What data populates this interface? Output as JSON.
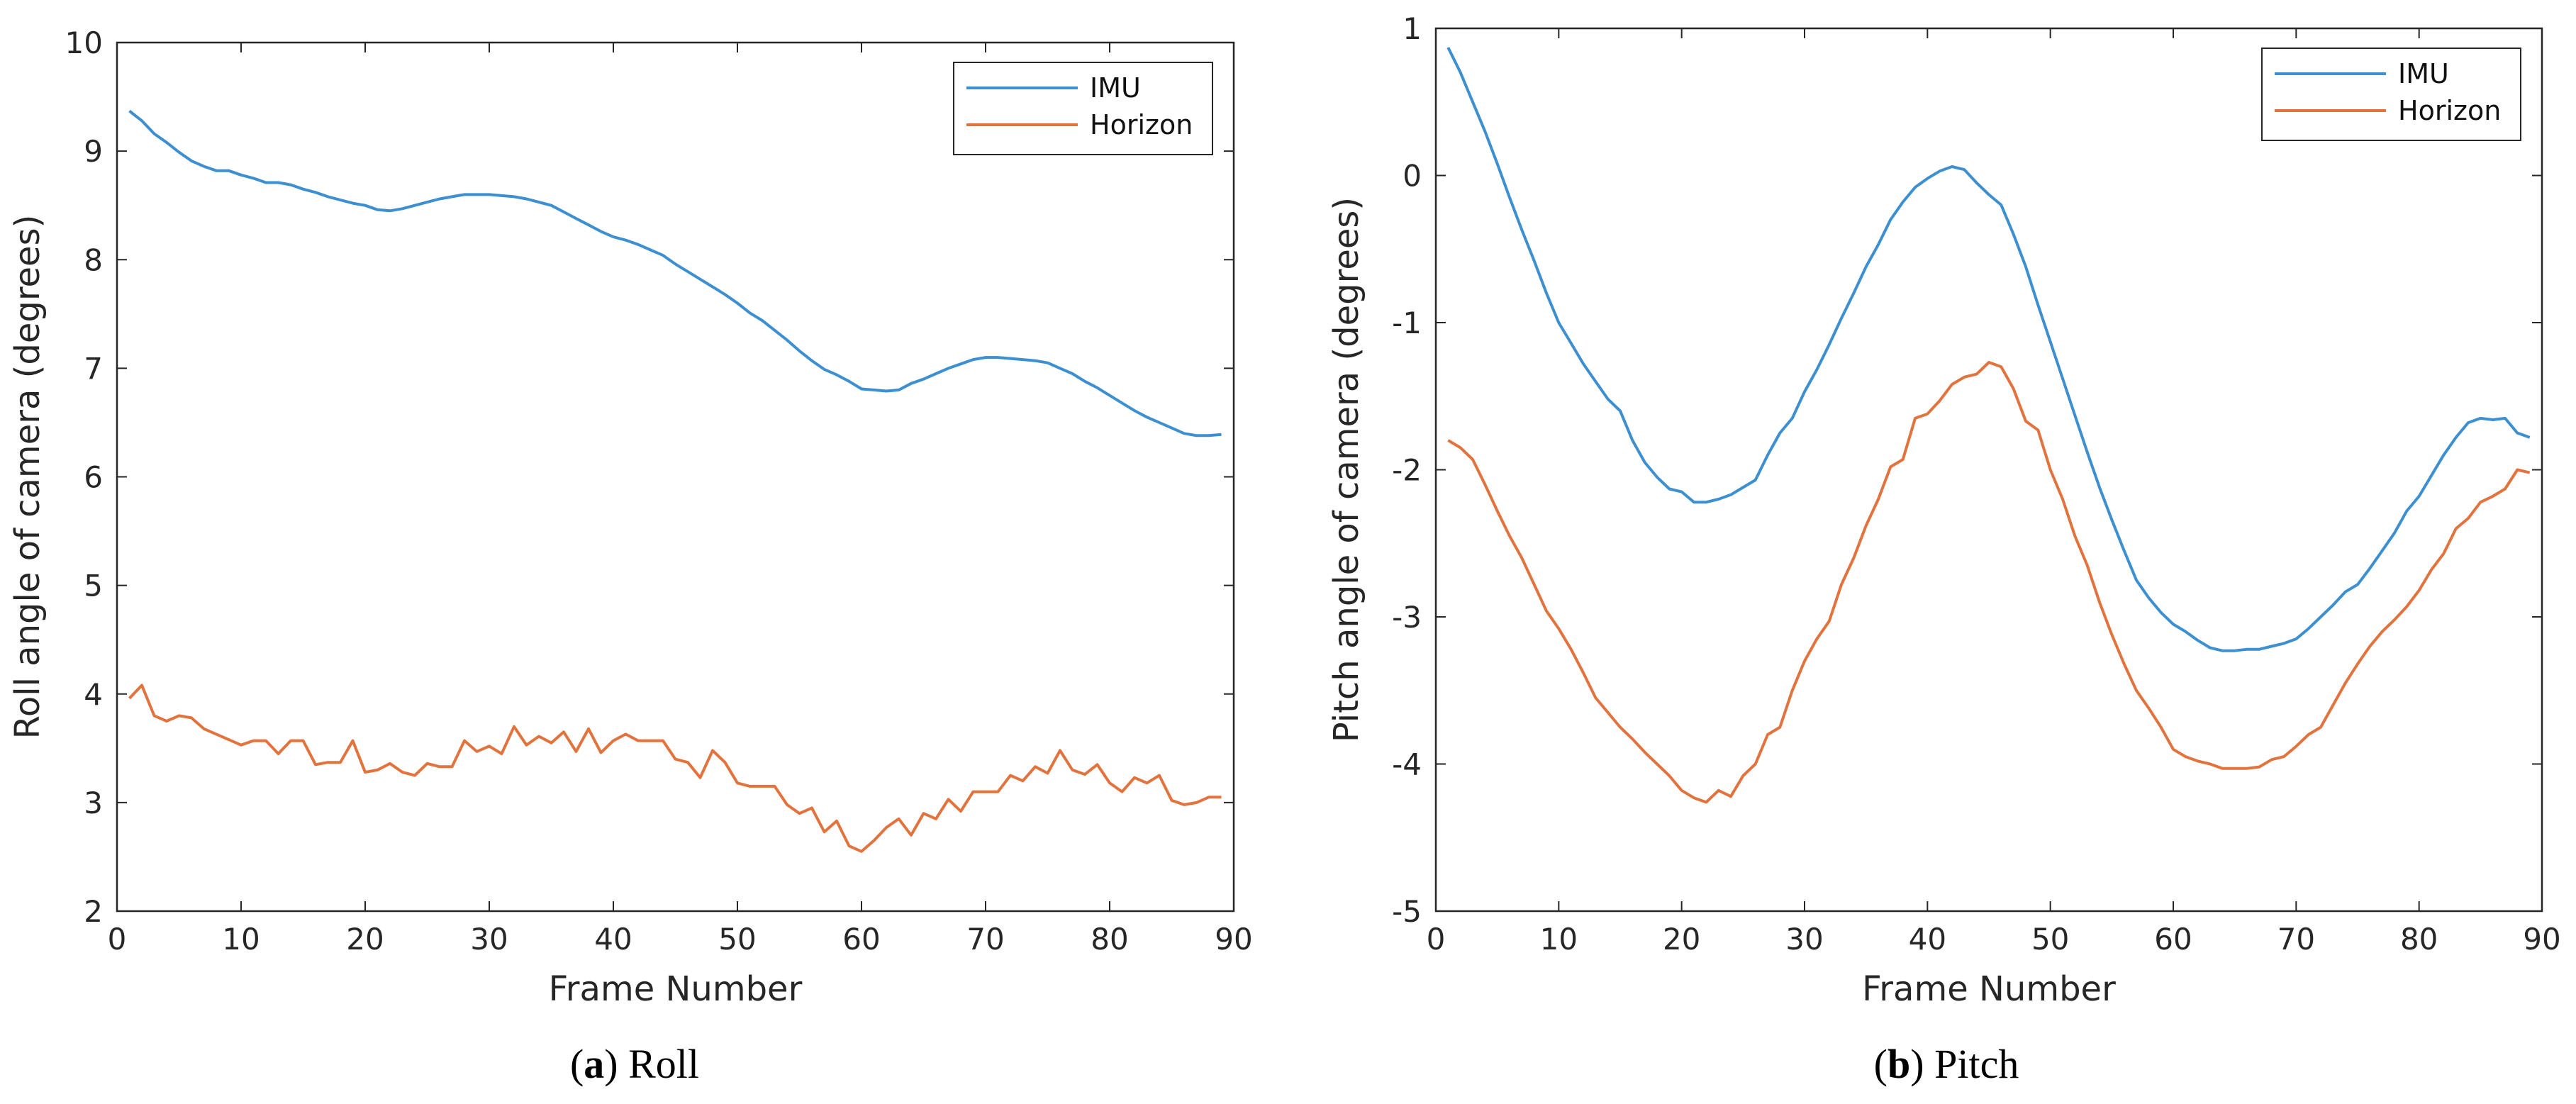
{
  "chart_data": [
    {
      "type": "line",
      "panel": "a",
      "caption_letter": "a",
      "caption_text": "Roll",
      "xlabel": "Frame Number",
      "ylabel": "Roll angle of camera (degrees)",
      "xlim": [
        0,
        90
      ],
      "ylim": [
        2,
        10
      ],
      "xticks": [
        "0",
        "10",
        "20",
        "30",
        "40",
        "50",
        "60",
        "70",
        "80",
        "90"
      ],
      "yticks": [
        "2",
        "3",
        "4",
        "5",
        "6",
        "7",
        "8",
        "9",
        "10"
      ],
      "legend_position": "top-right",
      "series": [
        {
          "name": "IMU",
          "color": "#3c8fd0",
          "x": [
            1,
            2,
            3,
            4,
            5,
            6,
            7,
            8,
            9,
            10,
            11,
            12,
            13,
            14,
            15,
            16,
            17,
            18,
            19,
            20,
            21,
            22,
            23,
            24,
            25,
            26,
            27,
            28,
            29,
            30,
            31,
            32,
            33,
            34,
            35,
            36,
            37,
            38,
            39,
            40,
            41,
            42,
            43,
            44,
            45,
            46,
            47,
            48,
            49,
            50,
            51,
            52,
            53,
            54,
            55,
            56,
            57,
            58,
            59,
            60,
            61,
            62,
            63,
            64,
            65,
            66,
            67,
            68,
            69,
            70,
            71,
            72,
            73,
            74,
            75,
            76,
            77,
            78,
            79,
            80,
            81,
            82,
            83,
            84,
            85,
            86,
            87,
            88,
            89
          ],
          "values": [
            9.37,
            9.28,
            9.16,
            9.08,
            8.99,
            8.91,
            8.86,
            8.82,
            8.82,
            8.78,
            8.75,
            8.71,
            8.71,
            8.69,
            8.65,
            8.62,
            8.58,
            8.55,
            8.52,
            8.5,
            8.46,
            8.45,
            8.47,
            8.5,
            8.53,
            8.56,
            8.58,
            8.6,
            8.6,
            8.6,
            8.59,
            8.58,
            8.56,
            8.53,
            8.5,
            8.44,
            8.38,
            8.32,
            8.26,
            8.21,
            8.18,
            8.14,
            8.09,
            8.04,
            7.96,
            7.89,
            7.82,
            7.75,
            7.68,
            7.6,
            7.51,
            7.44,
            7.35,
            7.26,
            7.16,
            7.07,
            6.99,
            6.94,
            6.88,
            6.81,
            6.8,
            6.79,
            6.8,
            6.86,
            6.9,
            6.95,
            7.0,
            7.04,
            7.08,
            7.1,
            7.1,
            7.09,
            7.08,
            7.07,
            7.05,
            7.0,
            6.95,
            6.88,
            6.82,
            6.75,
            6.68,
            6.61,
            6.55,
            6.5,
            6.45,
            6.4,
            6.38,
            6.38,
            6.39
          ]
        },
        {
          "name": "Horizon",
          "color": "#e2733d",
          "x": [
            1,
            2,
            3,
            4,
            5,
            6,
            7,
            8,
            9,
            10,
            11,
            12,
            13,
            14,
            15,
            16,
            17,
            18,
            19,
            20,
            21,
            22,
            23,
            24,
            25,
            26,
            27,
            28,
            29,
            30,
            31,
            32,
            33,
            34,
            35,
            36,
            37,
            38,
            39,
            40,
            41,
            42,
            43,
            44,
            45,
            46,
            47,
            48,
            49,
            50,
            51,
            52,
            53,
            54,
            55,
            56,
            57,
            58,
            59,
            60,
            61,
            62,
            63,
            64,
            65,
            66,
            67,
            68,
            69,
            70,
            71,
            72,
            73,
            74,
            75,
            76,
            77,
            78,
            79,
            80,
            81,
            82,
            83,
            84,
            85,
            86,
            87,
            88,
            89
          ],
          "values": [
            3.96,
            4.08,
            3.8,
            3.75,
            3.8,
            3.78,
            3.68,
            3.63,
            3.58,
            3.53,
            3.57,
            3.57,
            3.45,
            3.57,
            3.57,
            3.35,
            3.37,
            3.37,
            3.57,
            3.28,
            3.3,
            3.36,
            3.28,
            3.25,
            3.36,
            3.33,
            3.33,
            3.57,
            3.47,
            3.52,
            3.45,
            3.7,
            3.53,
            3.61,
            3.55,
            3.65,
            3.47,
            3.68,
            3.46,
            3.57,
            3.63,
            3.57,
            3.57,
            3.57,
            3.4,
            3.37,
            3.23,
            3.48,
            3.37,
            3.18,
            3.15,
            3.15,
            3.15,
            2.98,
            2.9,
            2.95,
            2.73,
            2.83,
            2.6,
            2.55,
            2.65,
            2.77,
            2.85,
            2.7,
            2.9,
            2.85,
            3.03,
            2.92,
            3.1,
            3.1,
            3.1,
            3.25,
            3.2,
            3.33,
            3.27,
            3.48,
            3.3,
            3.26,
            3.35,
            3.18,
            3.1,
            3.23,
            3.18,
            3.25,
            3.02,
            2.98,
            3.0,
            3.05,
            3.05
          ]
        }
      ]
    },
    {
      "type": "line",
      "panel": "b",
      "caption_letter": "b",
      "caption_text": "Pitch",
      "xlabel": "Frame Number",
      "ylabel": "Pitch angle of camera (degrees)",
      "xlim": [
        0,
        90
      ],
      "ylim": [
        -5,
        1
      ],
      "xticks": [
        "0",
        "10",
        "20",
        "30",
        "40",
        "50",
        "60",
        "70",
        "80",
        "90"
      ],
      "yticks": [
        "-5",
        "-4",
        "-3",
        "-2",
        "-1",
        "0",
        "1"
      ],
      "legend_position": "top-right",
      "series": [
        {
          "name": "IMU",
          "color": "#3c8fd0",
          "x": [
            1,
            2,
            3,
            4,
            5,
            6,
            7,
            8,
            9,
            10,
            11,
            12,
            13,
            14,
            15,
            16,
            17,
            18,
            19,
            20,
            21,
            22,
            23,
            24,
            25,
            26,
            27,
            28,
            29,
            30,
            31,
            32,
            33,
            34,
            35,
            36,
            37,
            38,
            39,
            40,
            41,
            42,
            43,
            44,
            45,
            46,
            47,
            48,
            49,
            50,
            51,
            52,
            53,
            54,
            55,
            56,
            57,
            58,
            59,
            60,
            61,
            62,
            63,
            64,
            65,
            66,
            67,
            68,
            69,
            70,
            71,
            72,
            73,
            74,
            75,
            76,
            77,
            78,
            79,
            80,
            81,
            82,
            83,
            84,
            85,
            86,
            87,
            88,
            89
          ],
          "values": [
            0.87,
            0.7,
            0.5,
            0.3,
            0.08,
            -0.15,
            -0.37,
            -0.58,
            -0.8,
            -1.0,
            -1.14,
            -1.28,
            -1.4,
            -1.52,
            -1.6,
            -1.8,
            -1.95,
            -2.05,
            -2.13,
            -2.15,
            -2.22,
            -2.22,
            -2.2,
            -2.17,
            -2.12,
            -2.07,
            -1.9,
            -1.75,
            -1.65,
            -1.47,
            -1.32,
            -1.15,
            -0.97,
            -0.8,
            -0.62,
            -0.47,
            -0.3,
            -0.18,
            -0.08,
            -0.02,
            0.03,
            0.06,
            0.04,
            -0.05,
            -0.13,
            -0.2,
            -0.4,
            -0.62,
            -0.88,
            -1.13,
            -1.38,
            -1.63,
            -1.88,
            -2.12,
            -2.34,
            -2.55,
            -2.75,
            -2.87,
            -2.97,
            -3.05,
            -3.1,
            -3.16,
            -3.21,
            -3.23,
            -3.23,
            -3.22,
            -3.22,
            -3.2,
            -3.18,
            -3.15,
            -3.08,
            -3.0,
            -2.92,
            -2.83,
            -2.78,
            -2.67,
            -2.55,
            -2.43,
            -2.28,
            -2.18,
            -2.04,
            -1.9,
            -1.78,
            -1.68,
            -1.65,
            -1.66,
            -1.65,
            -1.75,
            -1.78
          ]
        },
        {
          "name": "Horizon",
          "color": "#e2733d",
          "x": [
            1,
            2,
            3,
            4,
            5,
            6,
            7,
            8,
            9,
            10,
            11,
            12,
            13,
            14,
            15,
            16,
            17,
            18,
            19,
            20,
            21,
            22,
            23,
            24,
            25,
            26,
            27,
            28,
            29,
            30,
            31,
            32,
            33,
            34,
            35,
            36,
            37,
            38,
            39,
            40,
            41,
            42,
            43,
            44,
            45,
            46,
            47,
            48,
            49,
            50,
            51,
            52,
            53,
            54,
            55,
            56,
            57,
            58,
            59,
            60,
            61,
            62,
            63,
            64,
            65,
            66,
            67,
            68,
            69,
            70,
            71,
            72,
            73,
            74,
            75,
            76,
            77,
            78,
            79,
            80,
            81,
            82,
            83,
            84,
            85,
            86,
            87,
            88,
            89
          ],
          "values": [
            -1.8,
            -1.85,
            -1.93,
            -2.1,
            -2.28,
            -2.45,
            -2.6,
            -2.78,
            -2.96,
            -3.08,
            -3.22,
            -3.38,
            -3.55,
            -3.65,
            -3.75,
            -3.83,
            -3.92,
            -4.0,
            -4.08,
            -4.18,
            -4.23,
            -4.26,
            -4.18,
            -4.22,
            -4.08,
            -4.0,
            -3.8,
            -3.75,
            -3.5,
            -3.3,
            -3.15,
            -3.03,
            -2.78,
            -2.6,
            -2.38,
            -2.2,
            -1.98,
            -1.93,
            -1.65,
            -1.62,
            -1.53,
            -1.42,
            -1.37,
            -1.35,
            -1.27,
            -1.3,
            -1.45,
            -1.67,
            -1.73,
            -2.0,
            -2.2,
            -2.45,
            -2.65,
            -2.9,
            -3.12,
            -3.32,
            -3.5,
            -3.62,
            -3.75,
            -3.9,
            -3.95,
            -3.98,
            -4.0,
            -4.03,
            -4.03,
            -4.03,
            -4.02,
            -3.97,
            -3.95,
            -3.88,
            -3.8,
            -3.75,
            -3.6,
            -3.45,
            -3.32,
            -3.2,
            -3.1,
            -3.02,
            -2.93,
            -2.82,
            -2.68,
            -2.57,
            -2.4,
            -2.33,
            -2.22,
            -2.18,
            -2.13,
            -2.0,
            -2.02
          ]
        }
      ]
    }
  ]
}
